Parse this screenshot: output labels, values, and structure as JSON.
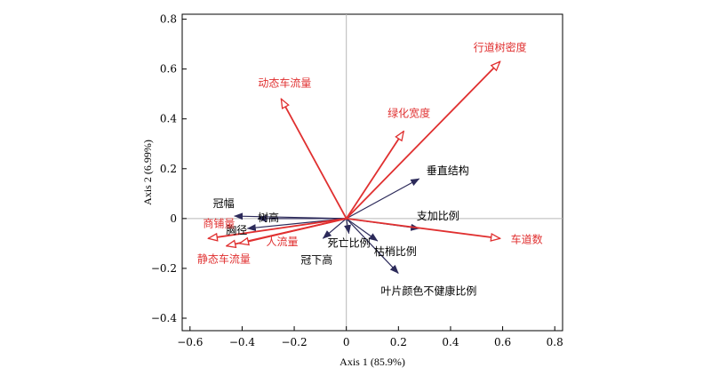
{
  "chart_data": {
    "type": "biplot",
    "xlabel": "Axis 1 (85.9%)",
    "ylabel": "Axis 2 (6.99%)",
    "xlim": [
      -0.63,
      0.83
    ],
    "ylim": [
      -0.45,
      0.82
    ],
    "xticks": [
      -0.6,
      -0.4,
      -0.2,
      0,
      0.2,
      0.4,
      0.6,
      0.8
    ],
    "yticks": [
      -0.4,
      -0.2,
      0,
      0.2,
      0.4,
      0.6,
      0.8
    ],
    "xtick_labels": [
      "−0.6",
      "−0.4",
      "−0.2",
      "0",
      "0.2",
      "0.4",
      "0.6",
      "0.8"
    ],
    "ytick_labels": [
      "−0.4",
      "−0.2",
      "0",
      "0.2",
      "0.4",
      "0.6",
      "0.8"
    ],
    "grid": false,
    "zero_lines": true,
    "colors": {
      "environment": "#e03030",
      "response": "#2c2a5a"
    },
    "environment_vectors": [
      {
        "label": "行道树密度",
        "x": 0.59,
        "y": 0.63
      },
      {
        "label": "绿化宽度",
        "x": 0.22,
        "y": 0.35
      },
      {
        "label": "动态车流量",
        "x": -0.25,
        "y": 0.48
      },
      {
        "label": "车道数",
        "x": 0.59,
        "y": -0.08
      },
      {
        "label": "商铺量",
        "x": -0.53,
        "y": -0.08
      },
      {
        "label": "静态车流量",
        "x": -0.46,
        "y": -0.11
      },
      {
        "label": "人流量",
        "x": -0.41,
        "y": -0.1
      }
    ],
    "response_vectors": [
      {
        "label": "垂直结构",
        "x": 0.28,
        "y": 0.16
      },
      {
        "label": "冠幅",
        "x": -0.43,
        "y": 0.01
      },
      {
        "label": "树高",
        "x": -0.34,
        "y": 0.0
      },
      {
        "label": "胸径",
        "x": -0.38,
        "y": -0.04
      },
      {
        "label": "支加比例",
        "x": 0.28,
        "y": -0.04
      },
      {
        "label": "枯梢比例",
        "x": 0.12,
        "y": -0.09
      },
      {
        "label": "死亡比例",
        "x": 0.01,
        "y": -0.06
      },
      {
        "label": "冠下高",
        "x": -0.09,
        "y": -0.08
      },
      {
        "label": "叶片颜色不健康比例",
        "x": 0.2,
        "y": -0.22
      }
    ]
  }
}
